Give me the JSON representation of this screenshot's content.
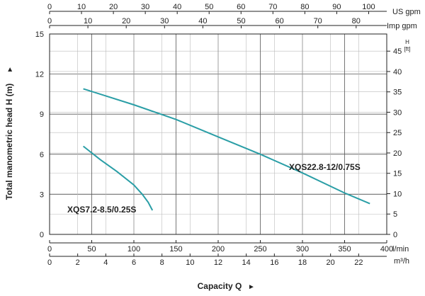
{
  "chart_data": {
    "type": "line",
    "ylabel": "Total manometric head H (m)",
    "xlabel": "Capacity Q",
    "primary_x_axis": {
      "unit": "l/min",
      "ticks": [
        0,
        50,
        100,
        150,
        200,
        250,
        300,
        350,
        400
      ],
      "range": [
        0,
        400
      ]
    },
    "secondary_x_axis_m3h": {
      "unit": "m³/h",
      "ticks": [
        0,
        2,
        4,
        6,
        8,
        10,
        12,
        14,
        16,
        18,
        20,
        22
      ]
    },
    "top_x_axis_us": {
      "unit": "US gpm",
      "ticks": [
        0,
        10,
        20,
        30,
        40,
        50,
        60,
        70,
        80,
        90,
        100
      ]
    },
    "top_x_axis_imp": {
      "unit": "Imp gpm",
      "ticks": [
        0,
        10,
        20,
        30,
        40,
        50,
        60,
        70,
        80
      ]
    },
    "left_y_axis": {
      "unit": "m",
      "ticks": [
        0,
        3,
        6,
        9,
        12,
        15
      ],
      "range": [
        0,
        15
      ]
    },
    "right_y_axis": {
      "unit_line1": "H",
      "unit_line2": "[ft]",
      "ticks": [
        0,
        5,
        10,
        15,
        20,
        25,
        30,
        35,
        40,
        45
      ]
    },
    "grid": true,
    "series_color": "#2a9ea6",
    "series": [
      {
        "name": "XQS7.2-8.5/0.25S",
        "points": [
          [
            40,
            6.6
          ],
          [
            60,
            5.6
          ],
          [
            80,
            4.7
          ],
          [
            100,
            3.7
          ],
          [
            110,
            3.0
          ],
          [
            117,
            2.4
          ],
          [
            122,
            1.8
          ]
        ]
      },
      {
        "name": "XQS22.8-12/0.75S",
        "points": [
          [
            40,
            10.9
          ],
          [
            100,
            9.7
          ],
          [
            150,
            8.6
          ],
          [
            200,
            7.3
          ],
          [
            250,
            6.0
          ],
          [
            300,
            4.6
          ],
          [
            350,
            3.1
          ],
          [
            380,
            2.3
          ]
        ]
      }
    ]
  }
}
